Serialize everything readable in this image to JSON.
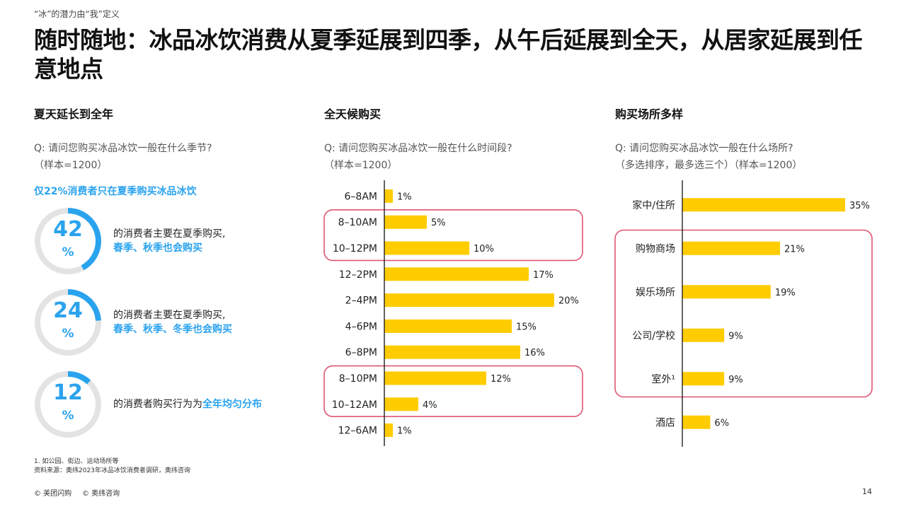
{
  "supertitle": "“冰”的潜力由“我”定义",
  "title": "随时随地：冰品冰饮消费从夏季延展到四季，从午后延展到全天，从居家延展到任意地点",
  "colors": {
    "accent": "#2aa3ee",
    "bar": "#ffcc00",
    "highlight_box": "#e05573",
    "ring_track": "#e3e3e3"
  },
  "left": {
    "heading": "夏天延长到全年",
    "question": "Q: 请问您购买冰品冰饮一般在什么季节?",
    "sample": "（样本=1200）",
    "highlight": "仅22%消费者只在夏季购买冰品冰饮",
    "stats": [
      {
        "value": 42,
        "number": "42",
        "pct": "%",
        "line1": "的消费者主要在夏季购买,",
        "line2": "春季、秋季也会购买"
      },
      {
        "value": 24,
        "number": "24",
        "pct": "%",
        "line1": "的消费者主要在夏季购买,",
        "line2": "春季、秋季、冬季也会购买"
      },
      {
        "value": 12,
        "number": "12",
        "pct": "%",
        "line1_prefix": "的消费者购买行为为",
        "line1_accent": "全年均匀分布"
      }
    ]
  },
  "middle": {
    "heading": "全天候购买",
    "question": "Q: 请问您购买冰品冰饮一般在什么时间段?",
    "sample": "（样本=1200）"
  },
  "right": {
    "heading": "购买场所多样",
    "question": "Q: 请问您购买冰品冰饮一般在什么场所?",
    "sample": "（多选排序，最多选三个）（样本=1200）"
  },
  "chart_data": [
    {
      "type": "bar",
      "orientation": "horizontal",
      "categories": [
        "6–8AM",
        "8–10AM",
        "10–12PM",
        "12–2PM",
        "2–4PM",
        "4–6PM",
        "6–8PM",
        "8–10PM",
        "10–12AM",
        "12–6AM"
      ],
      "values": [
        1,
        5,
        10,
        17,
        20,
        15,
        16,
        12,
        4,
        1
      ],
      "value_labels": [
        "1%",
        "5%",
        "10%",
        "17%",
        "20%",
        "15%",
        "16%",
        "12%",
        "4%",
        "1%"
      ],
      "highlighted_groups": [
        [
          1,
          2
        ],
        [
          7,
          8
        ]
      ],
      "xlim": [
        0,
        20
      ]
    },
    {
      "type": "bar",
      "orientation": "horizontal",
      "categories": [
        "家中/住所",
        "购物商场",
        "娱乐场所",
        "公司/学校",
        "室外¹",
        "酒店"
      ],
      "values": [
        35,
        21,
        19,
        9,
        9,
        6
      ],
      "value_labels": [
        "35%",
        "21%",
        "19%",
        "9%",
        "9%",
        "6%"
      ],
      "highlighted_groups": [
        [
          1,
          4
        ]
      ],
      "xlim": [
        0,
        35
      ]
    }
  ],
  "footnotes": {
    "note1": "1. 如公园、街边、运动场所等",
    "source": "资料来源：奥纬2023年冰品冰饮消费者调研，奥纬咨询"
  },
  "copyright": {
    "meituan": "© 美团闪购",
    "oliver": "© 奥纬咨询"
  },
  "page_number": "14"
}
